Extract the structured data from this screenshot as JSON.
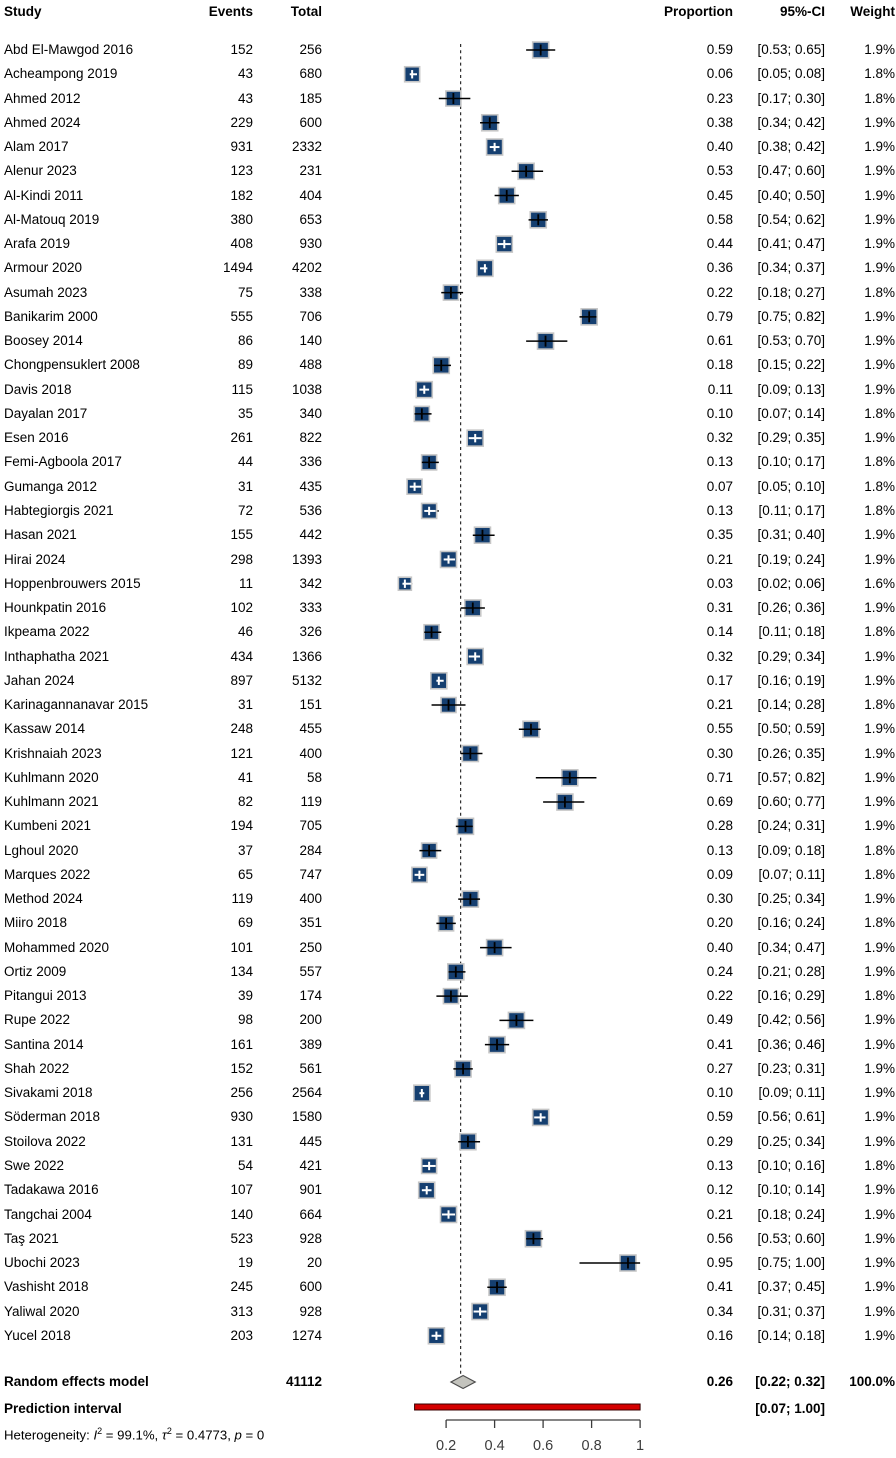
{
  "header": {
    "study": "Study",
    "events": "Events",
    "total": "Total",
    "proportion": "Proportion",
    "ci": "95%-CI",
    "weight": "Weight"
  },
  "chart_data": {
    "type": "forest",
    "x_axis": {
      "ticks": [
        0.2,
        0.4,
        0.6,
        0.8,
        1
      ],
      "tick_labels": [
        "0.2",
        "0.4",
        "0.6",
        "0.8",
        "1"
      ]
    },
    "reference_line": 0.26,
    "studies": [
      {
        "name": "Abd El-Mawgod 2016",
        "events": "152",
        "total": "256",
        "proportion": "0.59",
        "ci": "[0.53; 0.65]",
        "weight": "1.9%"
      },
      {
        "name": "Acheampong 2019",
        "events": "43",
        "total": "680",
        "proportion": "0.06",
        "ci": "[0.05; 0.08]",
        "weight": "1.8%"
      },
      {
        "name": "Ahmed 2012",
        "events": "43",
        "total": "185",
        "proportion": "0.23",
        "ci": "[0.17; 0.30]",
        "weight": "1.8%"
      },
      {
        "name": "Ahmed 2024",
        "events": "229",
        "total": "600",
        "proportion": "0.38",
        "ci": "[0.34; 0.42]",
        "weight": "1.9%"
      },
      {
        "name": "Alam 2017",
        "events": "931",
        "total": "2332",
        "proportion": "0.40",
        "ci": "[0.38; 0.42]",
        "weight": "1.9%"
      },
      {
        "name": "Alenur 2023",
        "events": "123",
        "total": "231",
        "proportion": "0.53",
        "ci": "[0.47; 0.60]",
        "weight": "1.9%"
      },
      {
        "name": "Al-Kindi 2011",
        "events": "182",
        "total": "404",
        "proportion": "0.45",
        "ci": "[0.40; 0.50]",
        "weight": "1.9%"
      },
      {
        "name": "Al-Matouq 2019",
        "events": "380",
        "total": "653",
        "proportion": "0.58",
        "ci": "[0.54; 0.62]",
        "weight": "1.9%"
      },
      {
        "name": "Arafa 2019",
        "events": "408",
        "total": "930",
        "proportion": "0.44",
        "ci": "[0.41; 0.47]",
        "weight": "1.9%"
      },
      {
        "name": "Armour 2020",
        "events": "1494",
        "total": "4202",
        "proportion": "0.36",
        "ci": "[0.34; 0.37]",
        "weight": "1.9%"
      },
      {
        "name": "Asumah 2023",
        "events": "75",
        "total": "338",
        "proportion": "0.22",
        "ci": "[0.18; 0.27]",
        "weight": "1.8%"
      },
      {
        "name": "Banikarim 2000",
        "events": "555",
        "total": "706",
        "proportion": "0.79",
        "ci": "[0.75; 0.82]",
        "weight": "1.9%"
      },
      {
        "name": "Boosey 2014",
        "events": "86",
        "total": "140",
        "proportion": "0.61",
        "ci": "[0.53; 0.70]",
        "weight": "1.9%"
      },
      {
        "name": "Chongpensuklert 2008",
        "events": "89",
        "total": "488",
        "proportion": "0.18",
        "ci": "[0.15; 0.22]",
        "weight": "1.9%"
      },
      {
        "name": "Davis 2018",
        "events": "115",
        "total": "1038",
        "proportion": "0.11",
        "ci": "[0.09; 0.13]",
        "weight": "1.9%"
      },
      {
        "name": "Dayalan 2017",
        "events": "35",
        "total": "340",
        "proportion": "0.10",
        "ci": "[0.07; 0.14]",
        "weight": "1.8%"
      },
      {
        "name": "Esen 2016",
        "events": "261",
        "total": "822",
        "proportion": "0.32",
        "ci": "[0.29; 0.35]",
        "weight": "1.9%"
      },
      {
        "name": "Femi-Agboola 2017",
        "events": "44",
        "total": "336",
        "proportion": "0.13",
        "ci": "[0.10; 0.17]",
        "weight": "1.8%"
      },
      {
        "name": "Gumanga 2012",
        "events": "31",
        "total": "435",
        "proportion": "0.07",
        "ci": "[0.05; 0.10]",
        "weight": "1.8%"
      },
      {
        "name": "Habtegiorgis 2021",
        "events": "72",
        "total": "536",
        "proportion": "0.13",
        "ci": "[0.11; 0.17]",
        "weight": "1.8%"
      },
      {
        "name": "Hasan 2021",
        "events": "155",
        "total": "442",
        "proportion": "0.35",
        "ci": "[0.31; 0.40]",
        "weight": "1.9%"
      },
      {
        "name": "Hirai 2024",
        "events": "298",
        "total": "1393",
        "proportion": "0.21",
        "ci": "[0.19; 0.24]",
        "weight": "1.9%"
      },
      {
        "name": "Hoppenbrouwers 2015",
        "events": "11",
        "total": "342",
        "proportion": "0.03",
        "ci": "[0.02; 0.06]",
        "weight": "1.6%"
      },
      {
        "name": "Hounkpatin 2016",
        "events": "102",
        "total": "333",
        "proportion": "0.31",
        "ci": "[0.26; 0.36]",
        "weight": "1.9%"
      },
      {
        "name": "Ikpeama 2022",
        "events": "46",
        "total": "326",
        "proportion": "0.14",
        "ci": "[0.11; 0.18]",
        "weight": "1.8%"
      },
      {
        "name": "Inthaphatha 2021",
        "events": "434",
        "total": "1366",
        "proportion": "0.32",
        "ci": "[0.29; 0.34]",
        "weight": "1.9%"
      },
      {
        "name": "Jahan 2024",
        "events": "897",
        "total": "5132",
        "proportion": "0.17",
        "ci": "[0.16; 0.19]",
        "weight": "1.9%"
      },
      {
        "name": "Karinagannanavar 2015",
        "events": "31",
        "total": "151",
        "proportion": "0.21",
        "ci": "[0.14; 0.28]",
        "weight": "1.8%"
      },
      {
        "name": "Kassaw 2014",
        "events": "248",
        "total": "455",
        "proportion": "0.55",
        "ci": "[0.50; 0.59]",
        "weight": "1.9%"
      },
      {
        "name": "Krishnaiah 2023",
        "events": "121",
        "total": "400",
        "proportion": "0.30",
        "ci": "[0.26; 0.35]",
        "weight": "1.9%"
      },
      {
        "name": "Kuhlmann 2020",
        "events": "41",
        "total": "58",
        "proportion": "0.71",
        "ci": "[0.57; 0.82]",
        "weight": "1.9%"
      },
      {
        "name": "Kuhlmann 2021",
        "events": "82",
        "total": "119",
        "proportion": "0.69",
        "ci": "[0.60; 0.77]",
        "weight": "1.9%"
      },
      {
        "name": "Kumbeni 2021",
        "events": "194",
        "total": "705",
        "proportion": "0.28",
        "ci": "[0.24; 0.31]",
        "weight": "1.9%"
      },
      {
        "name": "Lghoul 2020",
        "events": "37",
        "total": "284",
        "proportion": "0.13",
        "ci": "[0.09; 0.18]",
        "weight": "1.8%"
      },
      {
        "name": "Marques 2022",
        "events": "65",
        "total": "747",
        "proportion": "0.09",
        "ci": "[0.07; 0.11]",
        "weight": "1.8%"
      },
      {
        "name": "Method 2024",
        "events": "119",
        "total": "400",
        "proportion": "0.30",
        "ci": "[0.25; 0.34]",
        "weight": "1.9%"
      },
      {
        "name": "Miiro 2018",
        "events": "69",
        "total": "351",
        "proportion": "0.20",
        "ci": "[0.16; 0.24]",
        "weight": "1.8%"
      },
      {
        "name": "Mohammed 2020",
        "events": "101",
        "total": "250",
        "proportion": "0.40",
        "ci": "[0.34; 0.47]",
        "weight": "1.9%"
      },
      {
        "name": "Ortiz 2009",
        "events": "134",
        "total": "557",
        "proportion": "0.24",
        "ci": "[0.21; 0.28]",
        "weight": "1.9%"
      },
      {
        "name": "Pitangui 2013",
        "events": "39",
        "total": "174",
        "proportion": "0.22",
        "ci": "[0.16; 0.29]",
        "weight": "1.8%"
      },
      {
        "name": "Rupe 2022",
        "events": "98",
        "total": "200",
        "proportion": "0.49",
        "ci": "[0.42; 0.56]",
        "weight": "1.9%"
      },
      {
        "name": "Santina 2014",
        "events": "161",
        "total": "389",
        "proportion": "0.41",
        "ci": "[0.36; 0.46]",
        "weight": "1.9%"
      },
      {
        "name": "Shah 2022",
        "events": "152",
        "total": "561",
        "proportion": "0.27",
        "ci": "[0.23; 0.31]",
        "weight": "1.9%"
      },
      {
        "name": "Sivakami 2018",
        "events": "256",
        "total": "2564",
        "proportion": "0.10",
        "ci": "[0.09; 0.11]",
        "weight": "1.9%"
      },
      {
        "name": "Söderman 2018",
        "events": "930",
        "total": "1580",
        "proportion": "0.59",
        "ci": "[0.56; 0.61]",
        "weight": "1.9%"
      },
      {
        "name": "Stoilova 2022",
        "events": "131",
        "total": "445",
        "proportion": "0.29",
        "ci": "[0.25; 0.34]",
        "weight": "1.9%"
      },
      {
        "name": "Swe 2022",
        "events": "54",
        "total": "421",
        "proportion": "0.13",
        "ci": "[0.10; 0.16]",
        "weight": "1.8%"
      },
      {
        "name": "Tadakawa 2016",
        "events": "107",
        "total": "901",
        "proportion": "0.12",
        "ci": "[0.10; 0.14]",
        "weight": "1.9%"
      },
      {
        "name": "Tangchai 2004",
        "events": "140",
        "total": "664",
        "proportion": "0.21",
        "ci": "[0.18; 0.24]",
        "weight": "1.9%"
      },
      {
        "name": "Taş 2021",
        "events": "523",
        "total": "928",
        "proportion": "0.56",
        "ci": "[0.53; 0.60]",
        "weight": "1.9%"
      },
      {
        "name": "Ubochi 2023",
        "events": "19",
        "total": "20",
        "proportion": "0.95",
        "ci": "[0.75; 1.00]",
        "weight": "1.9%"
      },
      {
        "name": "Vashisht 2018",
        "events": "245",
        "total": "600",
        "proportion": "0.41",
        "ci": "[0.37; 0.45]",
        "weight": "1.9%"
      },
      {
        "name": "Yaliwal 2020",
        "events": "313",
        "total": "928",
        "proportion": "0.34",
        "ci": "[0.31; 0.37]",
        "weight": "1.9%"
      },
      {
        "name": "Yucel 2018",
        "events": "203",
        "total": "1274",
        "proportion": "0.16",
        "ci": "[0.14; 0.18]",
        "weight": "1.9%"
      }
    ],
    "summary": {
      "label": "Random effects model",
      "total": "41112",
      "proportion": "0.26",
      "ci": "[0.22; 0.32]",
      "weight": "100.0%"
    },
    "prediction": {
      "label": "Prediction interval",
      "ci": "[0.07; 1.00]"
    },
    "heterogeneity": {
      "prefix": "Heterogeneity: ",
      "i_sym": "I",
      "i_sup": "2",
      "i_val": " = 99.1%, ",
      "tau_sym": "τ",
      "tau_sup": "2",
      "tau_val": " = 0.4773, ",
      "p_sym": "p",
      "p_val": " = 0"
    },
    "colors": {
      "square": "#153F70",
      "square_border": "#C6C6C6",
      "ci_line": "#000000",
      "diamond_fill": "#C3C3BD",
      "diamond_border": "#4D4D4D",
      "prediction_bar": "#D40000",
      "prediction_bar_border": "#3A0000",
      "axis": "#3C3C3C"
    }
  }
}
